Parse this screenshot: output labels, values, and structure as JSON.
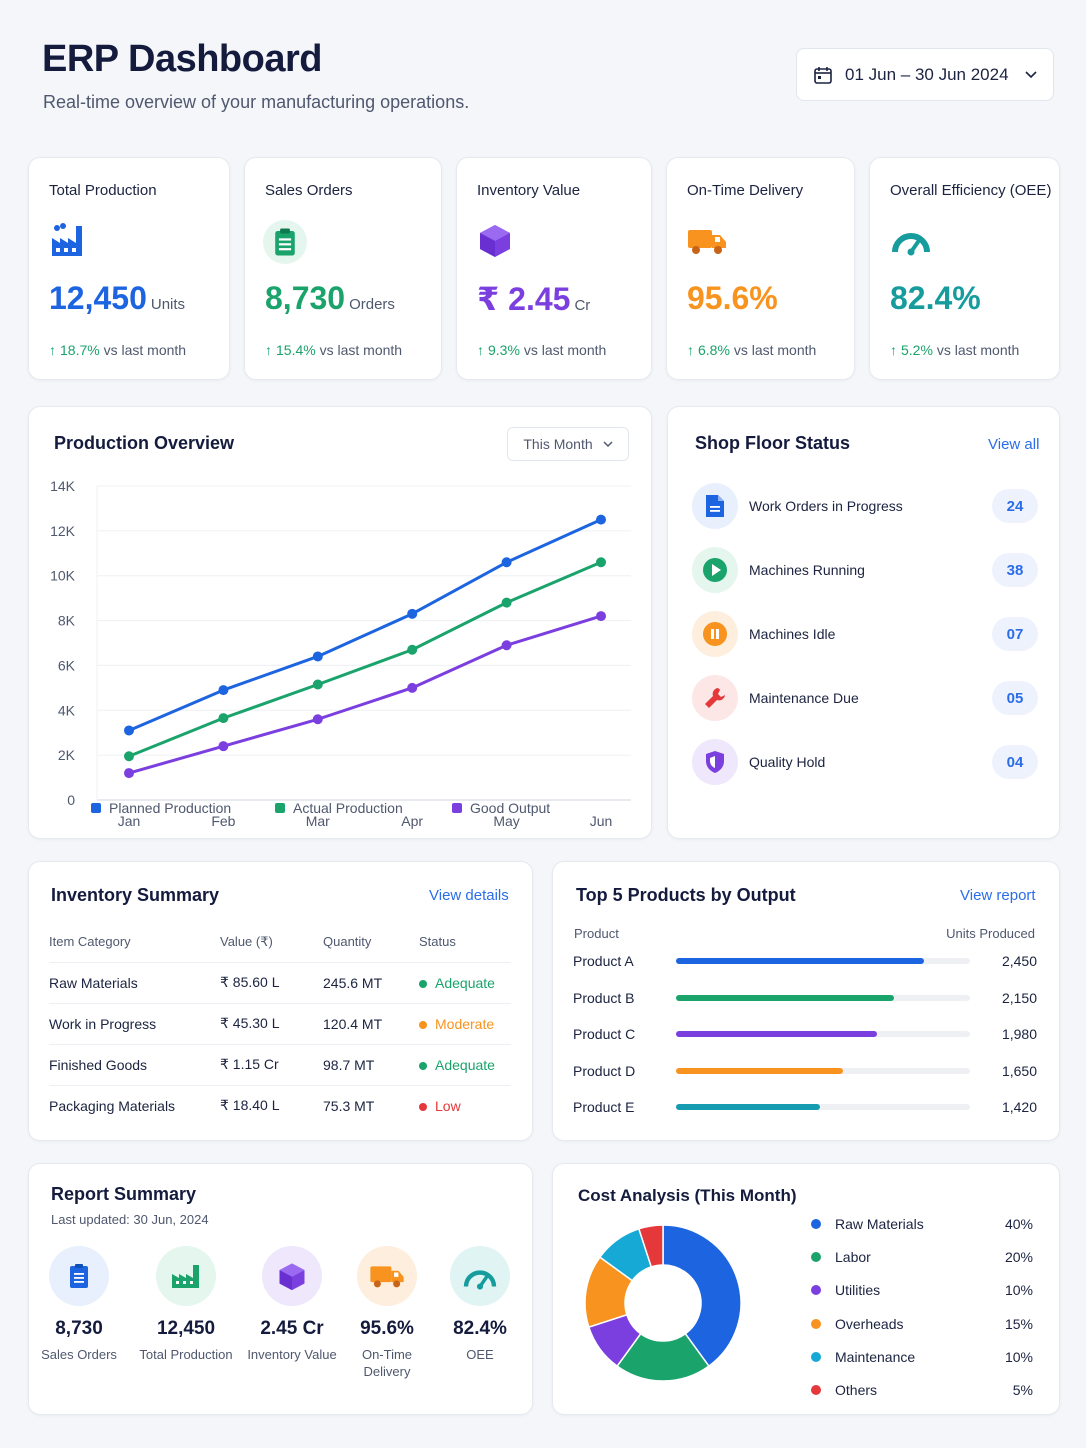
{
  "header": {
    "title": "ERP Dashboard",
    "subtitle": "Real-time overview of your manufacturing operations.",
    "date_range": "01 Jun – 30 Jun 2024"
  },
  "kpis": [
    {
      "title": "Total Production",
      "value": "12,450",
      "unit": "Units",
      "change": "18.7%",
      "suffix": "vs last month",
      "color": "#1d64e0",
      "icon": "factory-icon"
    },
    {
      "title": "Sales Orders",
      "value": "8,730",
      "unit": "Orders",
      "change": "15.4%",
      "suffix": "vs last month",
      "color": "#1aa36b",
      "icon": "clipboard-icon"
    },
    {
      "title": "Inventory Value",
      "value": "₹ 2.45",
      "unit": "Cr",
      "change": "9.3%",
      "suffix": "vs last month",
      "color": "#7b3fe0",
      "icon": "cube-icon"
    },
    {
      "title": "On-Time Delivery",
      "value": "95.6%",
      "unit": "",
      "change": "6.8%",
      "suffix": "vs last month",
      "color": "#f7931e",
      "icon": "truck-icon"
    },
    {
      "title": "Overall Efficiency (OEE)",
      "value": "82.4%",
      "unit": "",
      "change": "5.2%",
      "suffix": "vs last month",
      "color": "#169c9c",
      "icon": "gauge-icon"
    }
  ],
  "production": {
    "title": "Production Overview",
    "filter": "This Month",
    "chart_data": {
      "type": "line",
      "x": [
        "Jan",
        "Feb",
        "Mar",
        "Apr",
        "May",
        "Jun"
      ],
      "yticks": [
        "0",
        "2K",
        "4K",
        "6K",
        "8K",
        "10K",
        "12K",
        "14K"
      ],
      "ylim": [
        0,
        14000
      ],
      "grid": true,
      "legend": "bottom",
      "series": [
        {
          "name": "Planned Production",
          "color": "#1d64e0",
          "values": [
            3100,
            4900,
            6400,
            8300,
            10600,
            12500
          ]
        },
        {
          "name": "Actual Production",
          "color": "#1aa36b",
          "values": [
            1950,
            3650,
            5150,
            6700,
            8800,
            10600
          ]
        },
        {
          "name": "Good Output",
          "color": "#7b3fe0",
          "values": [
            1200,
            2400,
            3600,
            5000,
            6900,
            8200
          ]
        }
      ]
    }
  },
  "shop_floor": {
    "title": "Shop Floor Status",
    "link": "View all",
    "items": [
      {
        "label": "Work Orders in Progress",
        "count": "24",
        "icon": "document-icon"
      },
      {
        "label": "Machines Running",
        "count": "38",
        "icon": "play-icon"
      },
      {
        "label": "Machines Idle",
        "count": "07",
        "icon": "pause-icon"
      },
      {
        "label": "Maintenance Due",
        "count": "05",
        "icon": "wrench-icon"
      },
      {
        "label": "Quality Hold",
        "count": "04",
        "icon": "shield-icon"
      }
    ]
  },
  "inventory": {
    "title": "Inventory Summary",
    "link": "View details",
    "columns": [
      "Item Category",
      "Value (₹)",
      "Quantity",
      "Status"
    ],
    "rows": [
      {
        "category": "Raw Materials",
        "value": "₹ 85.60 L",
        "quantity": "245.6 MT",
        "status": "Adequate",
        "status_color": "#1aa36b"
      },
      {
        "category": "Work in Progress",
        "value": "₹ 45.30 L",
        "quantity": "120.4 MT",
        "status": "Moderate",
        "status_color": "#f7931e"
      },
      {
        "category": "Finished Goods",
        "value": "₹ 1.15 Cr",
        "quantity": "98.7 MT",
        "status": "Adequate",
        "status_color": "#1aa36b"
      },
      {
        "category": "Packaging Materials",
        "value": "₹ 18.40 L",
        "quantity": "75.3 MT",
        "status": "Low",
        "status_color": "#e5383b"
      }
    ]
  },
  "top_products": {
    "title": "Top 5 Products by Output",
    "link": "View report",
    "col_product": "Product",
    "col_units": "Units Produced",
    "chart_data": {
      "type": "bar",
      "categories": [
        "Product A",
        "Product B",
        "Product C",
        "Product D",
        "Product E"
      ],
      "values": [
        2450,
        2150,
        1980,
        1650,
        1420
      ],
      "labels": [
        "2,450",
        "2,150",
        "1,980",
        "1,650",
        "1,420"
      ],
      "colors": [
        "#1d64e0",
        "#1aa36b",
        "#7b3fe0",
        "#f7931e",
        "#169cb0"
      ],
      "max": 2900
    }
  },
  "report": {
    "title": "Report Summary",
    "updated": "Last updated: 30 Jun, 2024",
    "items": [
      {
        "value": "8,730",
        "label": "Sales Orders",
        "icon": "clipboard-icon"
      },
      {
        "value": "12,450",
        "label": "Total Production",
        "icon": "factory-icon"
      },
      {
        "value": "2.45 Cr",
        "label": "Inventory Value",
        "icon": "cube-icon"
      },
      {
        "value": "95.6%",
        "label": "On-Time Delivery",
        "icon": "truck-icon"
      },
      {
        "value": "82.4%",
        "label": "OEE",
        "icon": "gauge-icon"
      }
    ]
  },
  "cost": {
    "title": "Cost Analysis (This Month)",
    "chart_data": {
      "type": "pie",
      "categories": [
        "Raw Materials",
        "Labor",
        "Utilities",
        "Overheads",
        "Maintenance",
        "Others"
      ],
      "values": [
        40,
        20,
        10,
        15,
        10,
        5
      ],
      "labels": [
        "40%",
        "20%",
        "10%",
        "15%",
        "10%",
        "5%"
      ],
      "colors": [
        "#1d64e0",
        "#1aa36b",
        "#7b3fe0",
        "#f7931e",
        "#16a9d6",
        "#e5383b"
      ],
      "donut_colors_note": "",
      "legend": "right"
    }
  }
}
